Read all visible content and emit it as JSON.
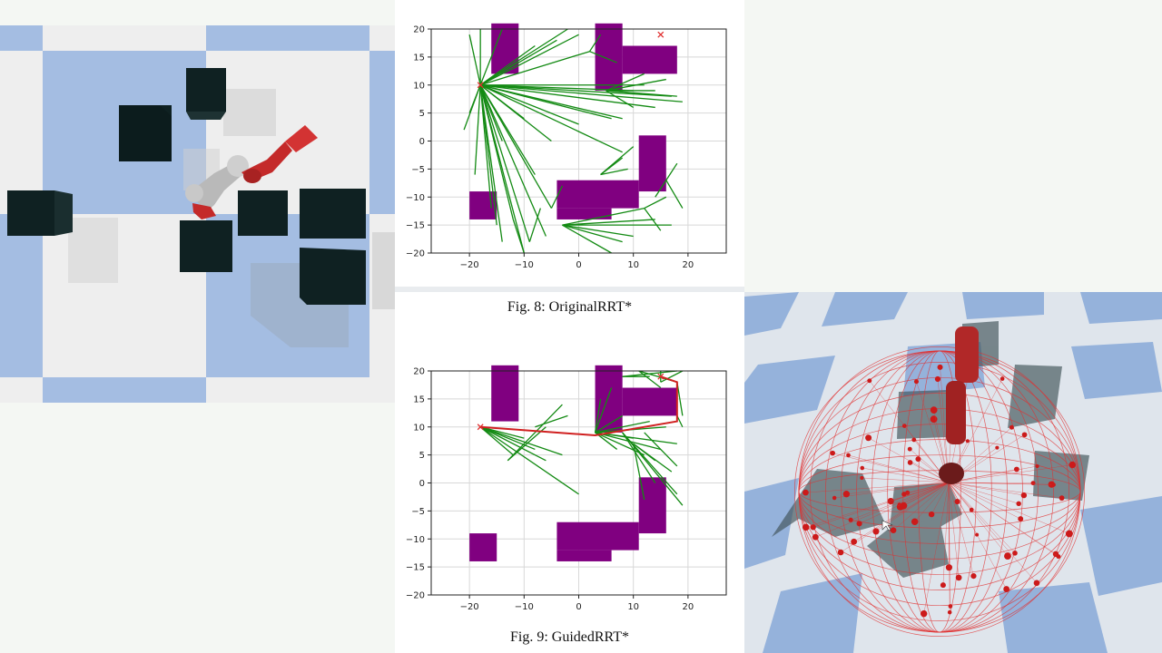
{
  "colors": {
    "obstacle": "#800080",
    "tree_edge": "#138a13",
    "path": "#d02020",
    "marker": "#e03030",
    "floor_blue": "#a4bde2",
    "floor_white": "#efefef",
    "block": "#0f2122",
    "robot_red": "#c42a2a",
    "robot_gray": "#bfbfbf"
  },
  "left_scene": {
    "name": "top-down simulation view",
    "objects": [
      "robot-arm",
      "obstacle-block"
    ]
  },
  "right_scene": {
    "name": "3d simulation view",
    "objects": [
      "robot-arm",
      "sample-sphere",
      "obstacle-box"
    ]
  },
  "figures": [
    {
      "caption": "Fig. 8: OriginalRRT*",
      "chart_data": {
        "type": "scatter",
        "title": "",
        "xlabel": "",
        "ylabel": "",
        "xlim": [
          -27,
          27
        ],
        "ylim": [
          -20,
          20
        ],
        "xticks": [
          "−20",
          "−10",
          "0",
          "10",
          "20"
        ],
        "yticks": [
          "20",
          "15",
          "10",
          "5",
          "0",
          "−5",
          "−10",
          "−15",
          "−20"
        ],
        "grid": true,
        "start": [
          -18,
          10
        ],
        "goal": [
          15,
          19
        ],
        "obstacles": [
          {
            "x": [
              -16,
              -11
            ],
            "y": [
              12,
              21
            ]
          },
          {
            "x": [
              3,
              8
            ],
            "y": [
              9,
              21
            ]
          },
          {
            "x": [
              8,
              18
            ],
            "y": [
              12,
              17
            ]
          },
          {
            "x": [
              11,
              16
            ],
            "y": [
              -9,
              1
            ]
          },
          {
            "x": [
              -4,
              11
            ],
            "y": [
              -12,
              -7
            ]
          },
          {
            "x": [
              -4,
              6
            ],
            "y": [
              -14,
              -12
            ]
          },
          {
            "x": [
              -20,
              -15
            ],
            "y": [
              -14,
              -9
            ]
          }
        ],
        "tree_edges": [
          [
            [
              -18,
              10
            ],
            [
              -15,
              -15
            ]
          ],
          [
            [
              -18,
              10
            ],
            [
              -14,
              -18
            ]
          ],
          [
            [
              -18,
              10
            ],
            [
              -10,
              -20
            ]
          ],
          [
            [
              -18,
              10
            ],
            [
              -9,
              -18
            ]
          ],
          [
            [
              -18,
              10
            ],
            [
              -6,
              -17
            ]
          ],
          [
            [
              -18,
              10
            ],
            [
              -5,
              -12
            ]
          ],
          [
            [
              -18,
              10
            ],
            [
              -8,
              -6
            ]
          ],
          [
            [
              -18,
              10
            ],
            [
              -12,
              -14
            ]
          ],
          [
            [
              -18,
              10
            ],
            [
              -16,
              -12
            ]
          ],
          [
            [
              -18,
              10
            ],
            [
              -19,
              -6
            ]
          ],
          [
            [
              -18,
              10
            ],
            [
              -14,
              0
            ]
          ],
          [
            [
              -18,
              10
            ],
            [
              -10,
              4
            ]
          ],
          [
            [
              -18,
              10
            ],
            [
              -5,
              0
            ]
          ],
          [
            [
              -18,
              10
            ],
            [
              0,
              3
            ]
          ],
          [
            [
              -18,
              10
            ],
            [
              8,
              -2
            ]
          ],
          [
            [
              -18,
              10
            ],
            [
              6,
              4
            ]
          ],
          [
            [
              -18,
              10
            ],
            [
              10,
              9
            ]
          ],
          [
            [
              -18,
              10
            ],
            [
              14,
              6
            ]
          ],
          [
            [
              -18,
              10
            ],
            [
              19,
              7
            ]
          ],
          [
            [
              -18,
              10
            ],
            [
              17,
              8
            ]
          ],
          [
            [
              -18,
              10
            ],
            [
              12,
              10
            ]
          ],
          [
            [
              -18,
              10
            ],
            [
              8,
              4
            ]
          ],
          [
            [
              -18,
              10
            ],
            [
              -20,
              19
            ]
          ],
          [
            [
              -18,
              10
            ],
            [
              -18,
              20
            ]
          ],
          [
            [
              -18,
              10
            ],
            [
              -14,
              20
            ]
          ],
          [
            [
              -18,
              10
            ],
            [
              -8,
              17
            ]
          ],
          [
            [
              -18,
              10
            ],
            [
              -4,
              18
            ]
          ],
          [
            [
              -18,
              10
            ],
            [
              -2,
              20
            ]
          ],
          [
            [
              -18,
              10
            ],
            [
              0,
              19
            ]
          ],
          [
            [
              -18,
              10
            ],
            [
              2,
              16
            ]
          ],
          [
            [
              -18,
              10
            ],
            [
              -20,
              5
            ]
          ],
          [
            [
              -18,
              10
            ],
            [
              -21,
              2
            ]
          ],
          [
            [
              -10,
              -20
            ],
            [
              -12,
              -14
            ]
          ],
          [
            [
              -9,
              -18
            ],
            [
              -7,
              -12
            ]
          ],
          [
            [
              -5,
              -12
            ],
            [
              -3,
              -8
            ]
          ],
          [
            [
              -3,
              -15
            ],
            [
              10,
              -17
            ]
          ],
          [
            [
              -3,
              -15
            ],
            [
              14,
              -14
            ]
          ],
          [
            [
              -3,
              -15
            ],
            [
              12,
              -12
            ]
          ],
          [
            [
              -3,
              -15
            ],
            [
              17,
              -15
            ]
          ],
          [
            [
              -3,
              -15
            ],
            [
              8,
              -18
            ]
          ],
          [
            [
              -3,
              -15
            ],
            [
              6,
              -20
            ]
          ],
          [
            [
              12,
              -12
            ],
            [
              16,
              -10
            ]
          ],
          [
            [
              12,
              -12
            ],
            [
              15,
              -16
            ]
          ],
          [
            [
              16,
              -7
            ],
            [
              19,
              -12
            ]
          ],
          [
            [
              16,
              -7
            ],
            [
              18,
              -4
            ]
          ],
          [
            [
              16,
              -7
            ],
            [
              14,
              -10
            ]
          ],
          [
            [
              4,
              -6
            ],
            [
              8,
              -3
            ]
          ],
          [
            [
              4,
              -6
            ],
            [
              9,
              -5
            ]
          ],
          [
            [
              4,
              -6
            ],
            [
              10,
              -1
            ]
          ],
          [
            [
              5,
              9
            ],
            [
              12,
              12
            ]
          ],
          [
            [
              5,
              9
            ],
            [
              16,
              11
            ]
          ],
          [
            [
              5,
              9
            ],
            [
              14,
              9
            ]
          ],
          [
            [
              5,
              9
            ],
            [
              18,
              8
            ]
          ],
          [
            [
              5,
              9
            ],
            [
              10,
              6
            ]
          ],
          [
            [
              2,
              16
            ],
            [
              4,
              19
            ]
          ],
          [
            [
              2,
              16
            ],
            [
              7,
              14
            ]
          ]
        ],
        "path": []
      }
    },
    {
      "caption": "Fig. 9: GuidedRRT*",
      "chart_data": {
        "type": "scatter",
        "title": "",
        "xlabel": "",
        "ylabel": "",
        "xlim": [
          -27,
          27
        ],
        "ylim": [
          -20,
          20
        ],
        "xticks": [
          "−20",
          "−10",
          "0",
          "10",
          "20"
        ],
        "yticks": [
          "20",
          "15",
          "10",
          "5",
          "0",
          "−5",
          "−10",
          "−15",
          "−20"
        ],
        "grid": true,
        "start": [
          -18,
          10
        ],
        "goal": [
          15,
          19
        ],
        "obstacles": [
          {
            "x": [
              -16,
              -11
            ],
            "y": [
              11,
              21
            ]
          },
          {
            "x": [
              3,
              8
            ],
            "y": [
              9,
              21
            ]
          },
          {
            "x": [
              8,
              18
            ],
            "y": [
              12,
              17
            ]
          },
          {
            "x": [
              11,
              16
            ],
            "y": [
              -9,
              1
            ]
          },
          {
            "x": [
              -4,
              11
            ],
            "y": [
              -12,
              -7
            ]
          },
          {
            "x": [
              -4,
              6
            ],
            "y": [
              -14,
              -12
            ]
          },
          {
            "x": [
              -20,
              -15
            ],
            "y": [
              -14,
              -9
            ]
          }
        ],
        "tree_edges": [
          [
            [
              -18,
              10
            ],
            [
              -12,
              5
            ]
          ],
          [
            [
              -18,
              10
            ],
            [
              -8,
              6
            ]
          ],
          [
            [
              -18,
              10
            ],
            [
              -6,
              4
            ]
          ],
          [
            [
              -18,
              10
            ],
            [
              -3,
              5
            ]
          ],
          [
            [
              -18,
              10
            ],
            [
              0,
              -2
            ]
          ],
          [
            [
              -18,
              10
            ],
            [
              -10,
              8
            ]
          ],
          [
            [
              -13,
              4
            ],
            [
              -6,
              10
            ]
          ],
          [
            [
              -13,
              4
            ],
            [
              -3,
              14
            ]
          ],
          [
            [
              -8,
              10
            ],
            [
              -2,
              12
            ]
          ],
          [
            [
              3,
              9
            ],
            [
              10,
              8
            ]
          ],
          [
            [
              3,
              9
            ],
            [
              12,
              5
            ]
          ],
          [
            [
              3,
              9
            ],
            [
              15,
              6
            ]
          ],
          [
            [
              3,
              9
            ],
            [
              18,
              7
            ]
          ],
          [
            [
              3,
              9
            ],
            [
              16,
              10
            ]
          ],
          [
            [
              3,
              9
            ],
            [
              13,
              11
            ]
          ],
          [
            [
              3,
              9
            ],
            [
              8,
              12
            ]
          ],
          [
            [
              3,
              9
            ],
            [
              7,
              6
            ]
          ],
          [
            [
              8,
              9
            ],
            [
              14,
              0
            ]
          ],
          [
            [
              8,
              9
            ],
            [
              18,
              -2
            ]
          ],
          [
            [
              8,
              9
            ],
            [
              19,
              -4
            ]
          ],
          [
            [
              10,
              7
            ],
            [
              12,
              -3
            ]
          ],
          [
            [
              10,
              7
            ],
            [
              17,
              2
            ]
          ],
          [
            [
              10,
              7
            ],
            [
              14,
              4
            ]
          ],
          [
            [
              12,
              9
            ],
            [
              18,
              3
            ]
          ],
          [
            [
              3,
              9
            ],
            [
              4,
              15
            ]
          ],
          [
            [
              3,
              9
            ],
            [
              6,
              17
            ]
          ],
          [
            [
              11,
              20
            ],
            [
              18,
              18
            ]
          ],
          [
            [
              11,
              20
            ],
            [
              15,
              17
            ]
          ],
          [
            [
              15,
              18
            ],
            [
              19,
              20
            ]
          ],
          [
            [
              8,
              19
            ],
            [
              13,
              19
            ]
          ],
          [
            [
              8,
              19
            ],
            [
              18,
              20
            ]
          ],
          [
            [
              15,
              18
            ],
            [
              15,
              20
            ]
          ],
          [
            [
              18,
              18
            ],
            [
              19,
              12
            ]
          ],
          [
            [
              18,
              18
            ],
            [
              18,
              14
            ]
          ],
          [
            [
              18,
              12
            ],
            [
              19,
              10
            ]
          ]
        ],
        "path": [
          [
            -18,
            10
          ],
          [
            3,
            8.5
          ],
          [
            18,
            11
          ],
          [
            18,
            18
          ],
          [
            15,
            19
          ]
        ]
      }
    }
  ]
}
